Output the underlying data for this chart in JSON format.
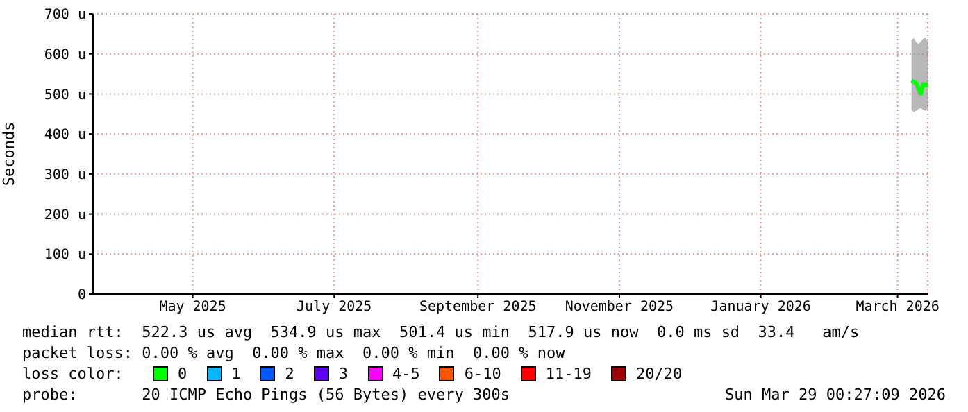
{
  "chart_data": {
    "type": "line",
    "ylabel": "Seconds",
    "x": [
      "2026-03-22",
      "2026-03-23",
      "2026-03-24",
      "2026-03-25",
      "2026-03-26",
      "2026-03-27",
      "2026-03-28",
      "2026-03-29"
    ],
    "xlim": [
      "2025-04-03",
      "2026-03-29"
    ],
    "xticks": [
      {
        "value": "2025-05-16",
        "label": "May 2025"
      },
      {
        "value": "2025-07-16",
        "label": "July 2025"
      },
      {
        "value": "2025-09-16",
        "label": "September 2025"
      },
      {
        "value": "2025-11-16",
        "label": "November 2025"
      },
      {
        "value": "2026-01-16",
        "label": "January 2026"
      },
      {
        "value": "2026-03-16",
        "label": "March 2026"
      }
    ],
    "ylim": [
      0,
      700
    ],
    "yticks": [
      0,
      {
        "value": 100,
        "label": "100 u"
      },
      {
        "value": 200,
        "label": "200 u"
      },
      {
        "value": 300,
        "label": "300 u"
      },
      {
        "value": 400,
        "label": "400 u"
      },
      {
        "value": 500,
        "label": "500 u"
      },
      {
        "value": 600,
        "label": "600 u"
      },
      {
        "value": 700,
        "label": "700 u"
      }
    ],
    "grid": true,
    "legend": "bottom",
    "legend_title": "loss color:",
    "marker": "none",
    "line_style": "solid",
    "series": [
      {
        "name": "0",
        "color": "#00ff00",
        "values": [
          533,
          530,
          527,
          512,
          501,
          524,
          525,
          518
        ],
        "lower": [
          460,
          455,
          458,
          462,
          465,
          460,
          458,
          462
        ],
        "upper": [
          635,
          640,
          630,
          625,
          630,
          638,
          640,
          632
        ]
      },
      {
        "name": "1",
        "color": "#00b8ff",
        "values": [
          null,
          null,
          null,
          null,
          null,
          null,
          null,
          null
        ]
      },
      {
        "name": "2",
        "color": "#0059ff",
        "values": [
          null,
          null,
          null,
          null,
          null,
          null,
          null,
          null
        ]
      },
      {
        "name": "3",
        "color": "#5e00ff",
        "values": [
          null,
          null,
          null,
          null,
          null,
          null,
          null,
          null
        ]
      },
      {
        "name": "4-5",
        "color": "#ff00ff",
        "values": [
          null,
          null,
          null,
          null,
          null,
          null,
          null,
          null
        ]
      },
      {
        "name": "6-10",
        "color": "#ff5500",
        "values": [
          null,
          null,
          null,
          null,
          null,
          null,
          null,
          null
        ]
      },
      {
        "name": "11-19",
        "color": "#ff0000",
        "values": [
          null,
          null,
          null,
          null,
          null,
          null,
          null,
          null
        ]
      },
      {
        "name": "20/20",
        "color": "#a10000",
        "values": [
          null,
          null,
          null,
          null,
          null,
          null,
          null,
          null
        ]
      }
    ],
    "annotations": [
      "median rtt:  522.3 us avg  534.9 us max  501.4 us min  517.9 us now  0.0 ms sd  33.4   am/s",
      "packet loss: 0.00 % avg  0.00 % max  0.00 % min  0.00 % now",
      "probe:       20 ICMP Echo Pings (56 Bytes) every 300s",
      "Sun Mar 29 00:27:09 2026"
    ]
  }
}
